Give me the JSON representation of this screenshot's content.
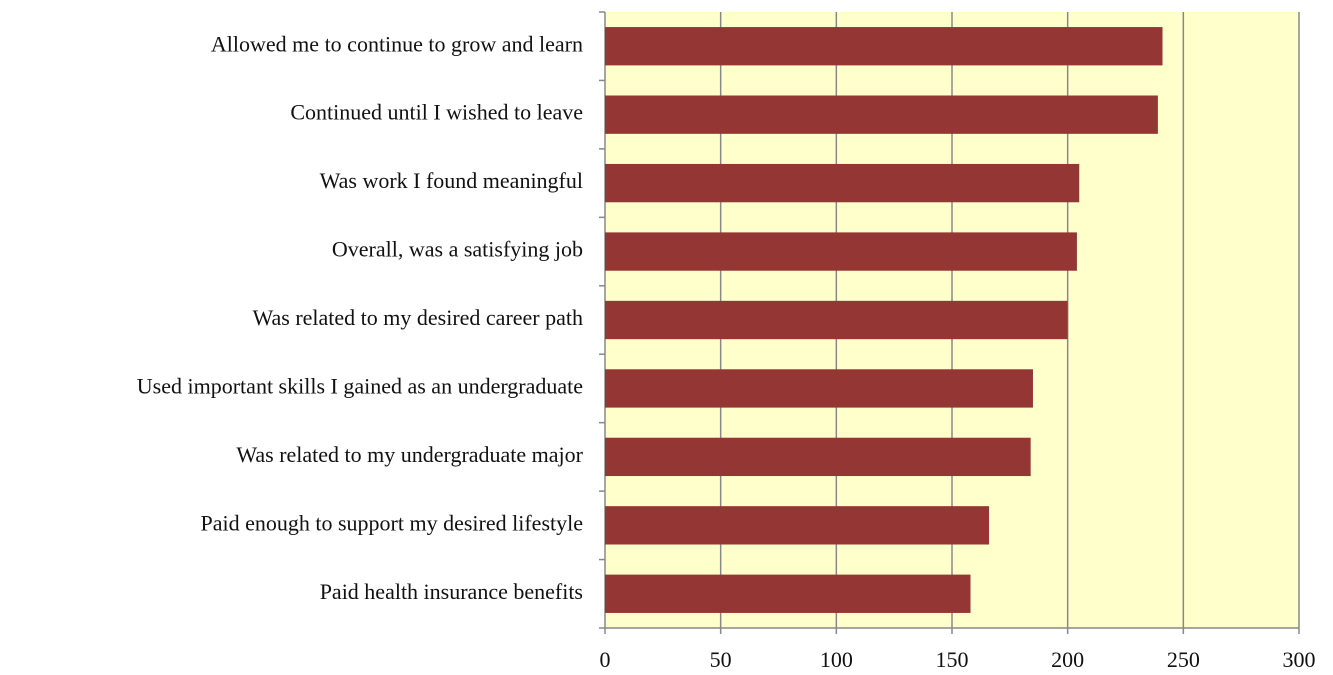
{
  "chart_data": {
    "type": "hbar",
    "categories": [
      "Allowed me to continue to grow and learn",
      "Continued until I wished to leave",
      "Was work I found meaningful",
      "Overall, was a satisfying job",
      "Was related to my desired career path",
      "Used important skills I gained as an undergraduate",
      "Was related to my undergraduate major",
      "Paid enough to support my desired lifestyle",
      "Paid health insurance benefits"
    ],
    "values": [
      241,
      239,
      205,
      204,
      200,
      185,
      184,
      166,
      158
    ],
    "color": "#943634",
    "xlim": [
      0,
      300
    ],
    "xticks": [
      0,
      50,
      100,
      150,
      200,
      250,
      300
    ],
    "grid": true
  }
}
